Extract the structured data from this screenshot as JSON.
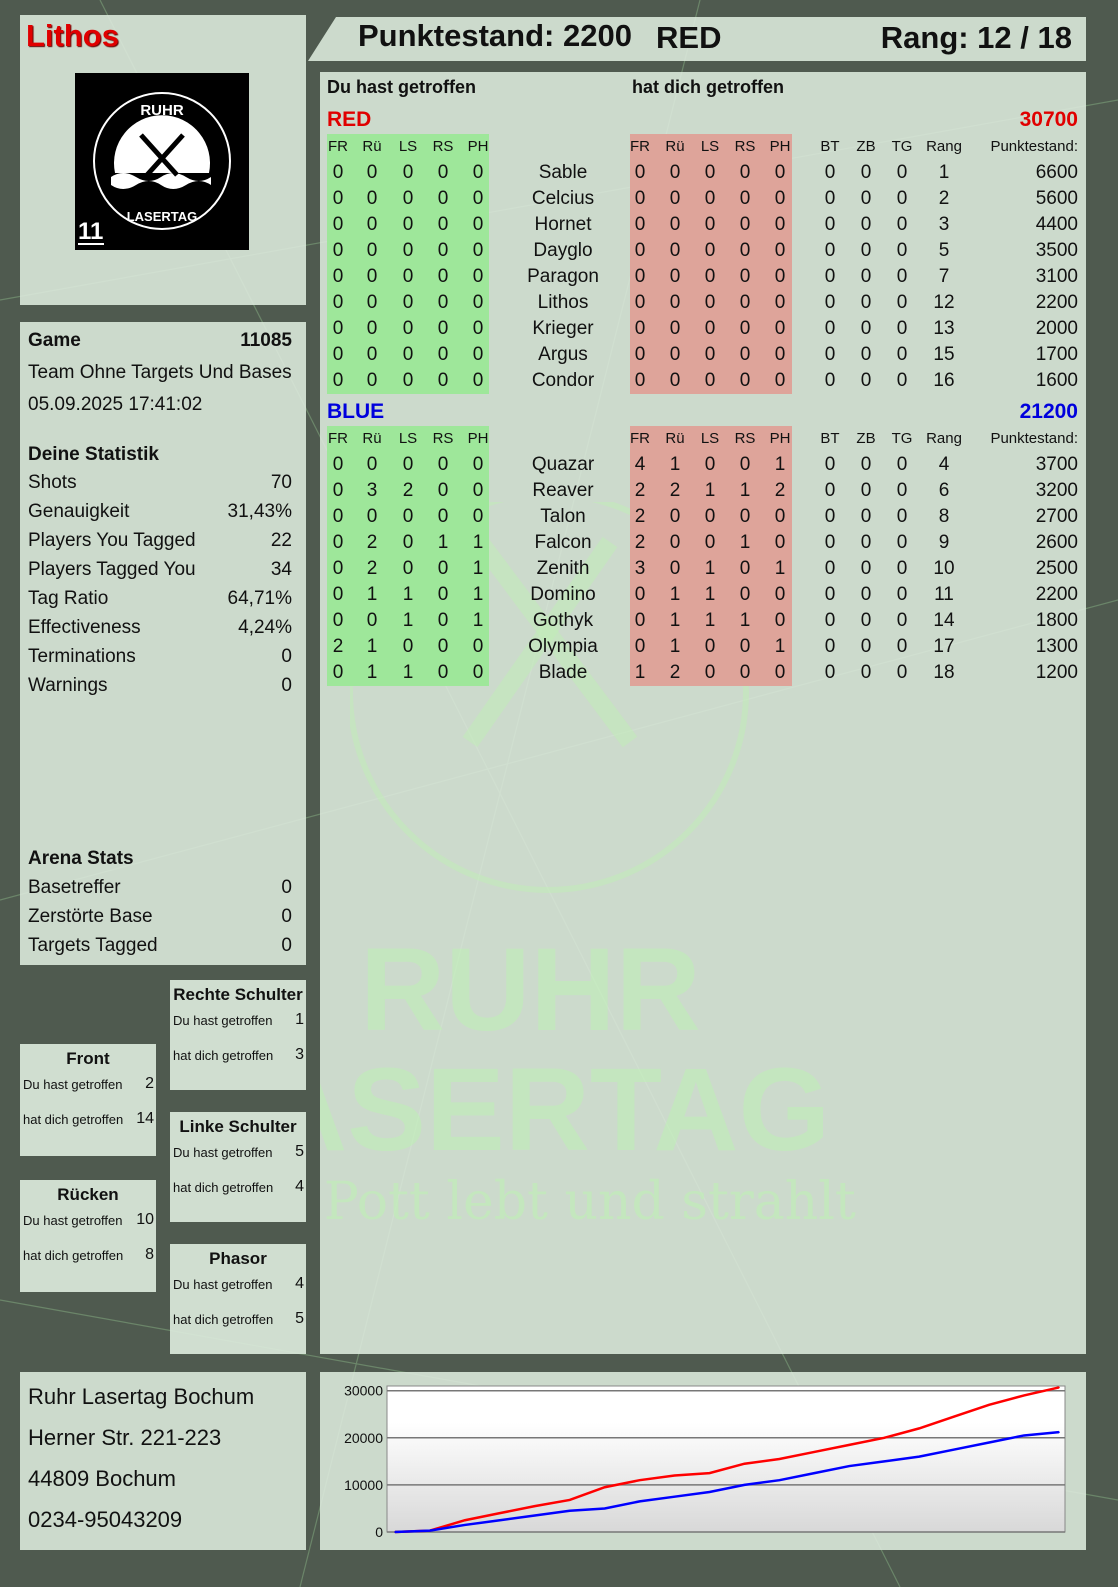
{
  "player": {
    "name": "Lithos",
    "logo_text": "RUHR LASERTAG",
    "logo_number": "11"
  },
  "header": {
    "score_label": "Punktestand: 2200",
    "team": "RED",
    "rank_label": "Rang: 12 / 18"
  },
  "game": {
    "label": "Game",
    "id": "11085",
    "mode": "Team Ohne Targets Und Bases",
    "datetime": "05.09.2025 17:41:02"
  },
  "stats": {
    "title": "Deine Statistik",
    "items": [
      {
        "label": "Shots",
        "value": "70"
      },
      {
        "label": "Genauigkeit",
        "value": "31,43%"
      },
      {
        "label": "Players You Tagged",
        "value": "22"
      },
      {
        "label": "Players Tagged You",
        "value": "34"
      },
      {
        "label": "Tag Ratio",
        "value": "64,71%"
      },
      {
        "label": "Effectiveness",
        "value": "4,24%"
      },
      {
        "label": "Terminations",
        "value": "0"
      },
      {
        "label": "Warnings",
        "value": "0"
      }
    ]
  },
  "arena": {
    "title": "Arena Stats",
    "items": [
      {
        "label": "Basetreffer",
        "value": "0"
      },
      {
        "label": "Zerstörte Base",
        "value": "0"
      },
      {
        "label": "Targets Tagged",
        "value": "0"
      }
    ]
  },
  "zones": [
    {
      "title": "Rechte Schulter",
      "hit_label": "Du hast getroffen",
      "hit": "1",
      "got_label": "hat dich getroffen",
      "got": "3"
    },
    {
      "title": "Front",
      "hit_label": "Du hast getroffen",
      "hit": "2",
      "got_label": "hat dich getroffen",
      "got": "14"
    },
    {
      "title": "Linke Schulter",
      "hit_label": "Du hast getroffen",
      "hit": "5",
      "got_label": "hat dich getroffen",
      "got": "4"
    },
    {
      "title": "Rücken",
      "hit_label": "Du hast getroffen",
      "hit": "10",
      "got_label": "hat dich getroffen",
      "got": "8"
    },
    {
      "title": "Phasor",
      "hit_label": "Du hast getroffen",
      "hit": "4",
      "got_label": "hat dich getroffen",
      "got": "5"
    }
  ],
  "table": {
    "you_hit_label": "Du hast getroffen",
    "hit_you_label": "hat dich getroffen",
    "hit_columns": [
      "FR",
      "Rü",
      "LS",
      "RS",
      "PH"
    ],
    "extra_columns": [
      "BT",
      "ZB",
      "TG",
      "Rang",
      "Punktestand:"
    ],
    "teams": [
      {
        "name": "RED",
        "score": "30700",
        "color": "#e00000",
        "players": [
          {
            "name": "Sable",
            "hit": [
              0,
              0,
              0,
              0,
              0
            ],
            "got": [
              0,
              0,
              0,
              0,
              0
            ],
            "extra": [
              0,
              0,
              0,
              1,
              6600
            ]
          },
          {
            "name": "Celcius",
            "hit": [
              0,
              0,
              0,
              0,
              0
            ],
            "got": [
              0,
              0,
              0,
              0,
              0
            ],
            "extra": [
              0,
              0,
              0,
              2,
              5600
            ]
          },
          {
            "name": "Hornet",
            "hit": [
              0,
              0,
              0,
              0,
              0
            ],
            "got": [
              0,
              0,
              0,
              0,
              0
            ],
            "extra": [
              0,
              0,
              0,
              3,
              4400
            ]
          },
          {
            "name": "Dayglo",
            "hit": [
              0,
              0,
              0,
              0,
              0
            ],
            "got": [
              0,
              0,
              0,
              0,
              0
            ],
            "extra": [
              0,
              0,
              0,
              5,
              3500
            ]
          },
          {
            "name": "Paragon",
            "hit": [
              0,
              0,
              0,
              0,
              0
            ],
            "got": [
              0,
              0,
              0,
              0,
              0
            ],
            "extra": [
              0,
              0,
              0,
              7,
              3100
            ]
          },
          {
            "name": "Lithos",
            "hit": [
              0,
              0,
              0,
              0,
              0
            ],
            "got": [
              0,
              0,
              0,
              0,
              0
            ],
            "extra": [
              0,
              0,
              0,
              12,
              2200
            ]
          },
          {
            "name": "Krieger",
            "hit": [
              0,
              0,
              0,
              0,
              0
            ],
            "got": [
              0,
              0,
              0,
              0,
              0
            ],
            "extra": [
              0,
              0,
              0,
              13,
              2000
            ]
          },
          {
            "name": "Argus",
            "hit": [
              0,
              0,
              0,
              0,
              0
            ],
            "got": [
              0,
              0,
              0,
              0,
              0
            ],
            "extra": [
              0,
              0,
              0,
              15,
              1700
            ]
          },
          {
            "name": "Condor",
            "hit": [
              0,
              0,
              0,
              0,
              0
            ],
            "got": [
              0,
              0,
              0,
              0,
              0
            ],
            "extra": [
              0,
              0,
              0,
              16,
              1600
            ]
          }
        ]
      },
      {
        "name": "BLUE",
        "score": "21200",
        "color": "#0000dd",
        "players": [
          {
            "name": "Quazar",
            "hit": [
              0,
              0,
              0,
              0,
              0
            ],
            "got": [
              4,
              1,
              0,
              0,
              1
            ],
            "extra": [
              0,
              0,
              0,
              4,
              3700
            ]
          },
          {
            "name": "Reaver",
            "hit": [
              0,
              3,
              2,
              0,
              0
            ],
            "got": [
              2,
              2,
              1,
              1,
              2
            ],
            "extra": [
              0,
              0,
              0,
              6,
              3200
            ]
          },
          {
            "name": "Talon",
            "hit": [
              0,
              0,
              0,
              0,
              0
            ],
            "got": [
              2,
              0,
              0,
              0,
              0
            ],
            "extra": [
              0,
              0,
              0,
              8,
              2700
            ]
          },
          {
            "name": "Falcon",
            "hit": [
              0,
              2,
              0,
              1,
              1
            ],
            "got": [
              2,
              0,
              0,
              1,
              0
            ],
            "extra": [
              0,
              0,
              0,
              9,
              2600
            ]
          },
          {
            "name": "Zenith",
            "hit": [
              0,
              2,
              0,
              0,
              1
            ],
            "got": [
              3,
              0,
              1,
              0,
              1
            ],
            "extra": [
              0,
              0,
              0,
              10,
              2500
            ]
          },
          {
            "name": "Domino",
            "hit": [
              0,
              1,
              1,
              0,
              1
            ],
            "got": [
              0,
              1,
              1,
              0,
              0
            ],
            "extra": [
              0,
              0,
              0,
              11,
              2200
            ]
          },
          {
            "name": "Gothyk",
            "hit": [
              0,
              0,
              1,
              0,
              1
            ],
            "got": [
              0,
              1,
              1,
              1,
              0
            ],
            "extra": [
              0,
              0,
              0,
              14,
              1800
            ]
          },
          {
            "name": "Olympia",
            "hit": [
              2,
              1,
              0,
              0,
              0
            ],
            "got": [
              0,
              1,
              0,
              0,
              1
            ],
            "extra": [
              0,
              0,
              0,
              17,
              1300
            ]
          },
          {
            "name": "Blade",
            "hit": [
              0,
              1,
              1,
              0,
              0
            ],
            "got": [
              1,
              2,
              0,
              0,
              0
            ],
            "extra": [
              0,
              0,
              0,
              18,
              1200
            ]
          }
        ]
      }
    ]
  },
  "watermark": {
    "line1": "RUHR",
    "line2": "LASERTAG",
    "slogan": "Der Pott lebt und strahlt"
  },
  "address": {
    "lines": [
      "Ruhr Lasertag Bochum",
      "Herner Str. 221-223",
      "44809 Bochum",
      "0234-95043209"
    ]
  },
  "chart_data": {
    "type": "line",
    "ylim": [
      0,
      31000
    ],
    "yticks": [
      0,
      10000,
      20000,
      30000
    ],
    "grid": true,
    "x": [
      0,
      1,
      2,
      3,
      4,
      5,
      6,
      7,
      8,
      9,
      10,
      11,
      12,
      13,
      14,
      15,
      16,
      17,
      18,
      19
    ],
    "series": [
      {
        "color": "#ff0000",
        "values": [
          0,
          300,
          2500,
          4000,
          5500,
          6800,
          9500,
          11000,
          12000,
          12500,
          14500,
          15500,
          17000,
          18500,
          20000,
          22000,
          24500,
          27000,
          29000,
          30700
        ]
      },
      {
        "color": "#0000ff",
        "values": [
          0,
          300,
          1500,
          2500,
          3500,
          4500,
          5000,
          6500,
          7500,
          8500,
          10000,
          11000,
          12500,
          14000,
          15000,
          16000,
          17500,
          19000,
          20500,
          21200
        ]
      }
    ]
  }
}
